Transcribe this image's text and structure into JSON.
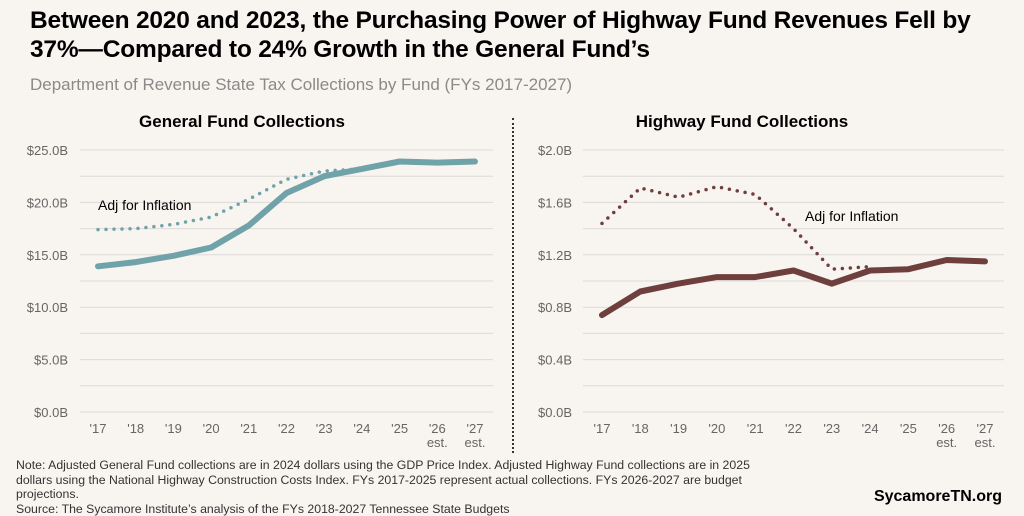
{
  "title": "Between 2020 and 2023, the Purchasing Power of Highway Fund Revenues Fell by 37%—Compared to 24% Growth in the General Fund’s",
  "subtitle": "Department of Revenue State Tax Collections by Fund (FYs 2017-2027)",
  "notes": [
    "Note: Adjusted General Fund collections are in 2024 dollars using the GDP Price Index. Adjusted Highway Fund collections are in 2025 dollars using the National Highway Construction Costs Index. FYs 2017-2025 represent actual collections. FYs 2026-2027 are budget projections.",
    "Source: The Sycamore Institute’s analysis of the FYs 2018-2027 Tennessee State Budgets"
  ],
  "logo": "SycamoreTN.org",
  "chart_data": [
    {
      "type": "line",
      "title": "General Fund Collections",
      "categories": [
        "'17",
        "'18",
        "'19",
        "'20",
        "'21",
        "'22",
        "'23",
        "'24",
        "'25",
        "'26\nest.",
        "'27\nest."
      ],
      "ylim": [
        0,
        25
      ],
      "yticks": [
        "$0.0B",
        "$5.0B",
        "$10.0B",
        "$15.0B",
        "$20.0B",
        "$25.0B"
      ],
      "grid": true,
      "color": "#6fa3a9",
      "annotation": "Adj for Inflation",
      "series": [
        {
          "style": "solid",
          "values": [
            13.9,
            14.3,
            14.9,
            15.7,
            17.8,
            20.9,
            22.5,
            23.2,
            23.9,
            23.8,
            23.9
          ]
        },
        {
          "name": "Adj for Inflation",
          "style": "dotted",
          "values": [
            17.4,
            17.5,
            17.9,
            18.6,
            20.3,
            22.2,
            23.0,
            23.2,
            null,
            null,
            null
          ]
        }
      ]
    },
    {
      "type": "line",
      "title": "Highway Fund Collections",
      "categories": [
        "'17",
        "'18",
        "'19",
        "'20",
        "'21",
        "'22",
        "'23",
        "'24",
        "'25",
        "'26\nest.",
        "'27\nest."
      ],
      "ylim": [
        0,
        2.0
      ],
      "yticks": [
        "$0.0B",
        "$0.4B",
        "$0.8B",
        "$1.2B",
        "$1.6B",
        "$2.0B"
      ],
      "grid": true,
      "color": "#6e3f3c",
      "annotation": "Adj for Inflation",
      "series": [
        {
          "style": "solid",
          "values": [
            0.74,
            0.92,
            0.98,
            1.03,
            1.03,
            1.08,
            0.98,
            1.08,
            1.09,
            1.16,
            1.15
          ]
        },
        {
          "name": "Adj for Inflation",
          "style": "dotted",
          "values": [
            1.44,
            1.71,
            1.64,
            1.72,
            1.66,
            1.4,
            1.09,
            1.11,
            null,
            null,
            null
          ]
        }
      ]
    }
  ]
}
